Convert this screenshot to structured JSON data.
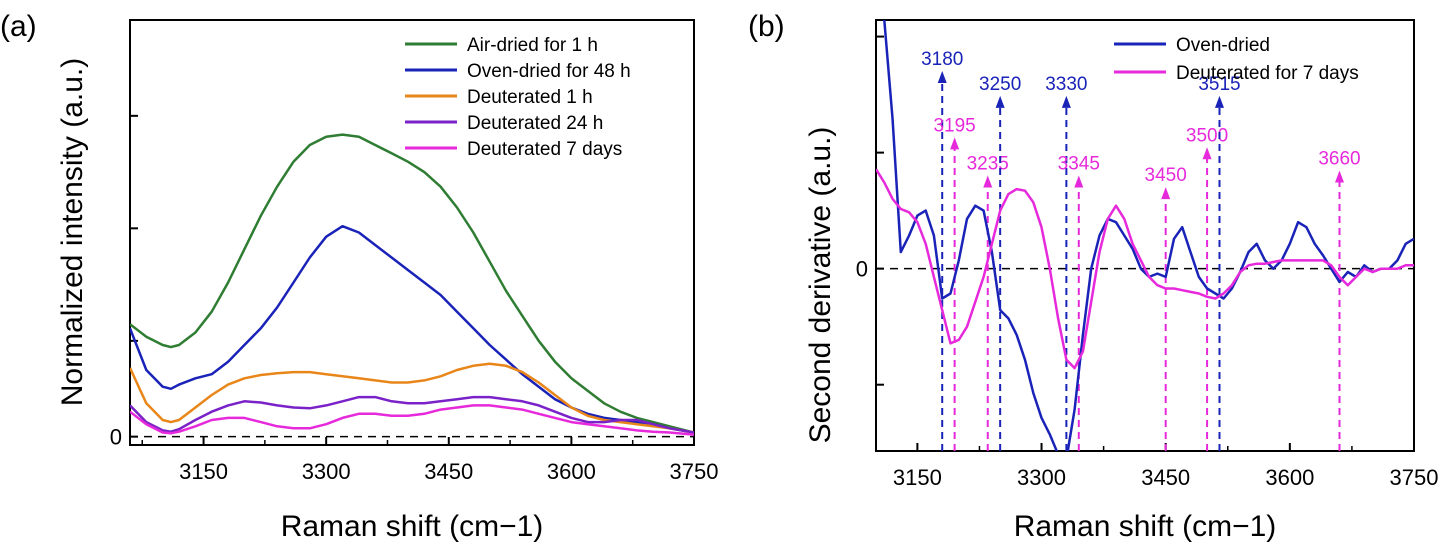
{
  "chart_data": [
    {
      "type": "line",
      "panel_label": "(a)",
      "xlabel": "Raman shift (cm−1)",
      "ylabel": "Normalized intensity (a.u.)",
      "xlim": [
        3060,
        3750
      ],
      "ylim": [
        -0.02,
        1.0
      ],
      "xticks": [
        3150,
        3300,
        3450,
        3600,
        3750
      ],
      "yticks": [
        0
      ],
      "minor_yticks": [
        0.23,
        0.5,
        0.77
      ],
      "zero_line": true,
      "legend_position": "top-right",
      "series": [
        {
          "name": "Air-dried for 1 h",
          "color": "#2e7d32",
          "x": [
            3060,
            3080,
            3100,
            3110,
            3120,
            3140,
            3160,
            3180,
            3200,
            3220,
            3240,
            3260,
            3280,
            3300,
            3320,
            3340,
            3360,
            3380,
            3400,
            3420,
            3440,
            3460,
            3480,
            3500,
            3520,
            3540,
            3560,
            3580,
            3600,
            3620,
            3640,
            3660,
            3680,
            3700,
            3720,
            3750
          ],
          "y": [
            0.27,
            0.24,
            0.22,
            0.215,
            0.22,
            0.25,
            0.3,
            0.37,
            0.45,
            0.53,
            0.6,
            0.66,
            0.7,
            0.72,
            0.725,
            0.72,
            0.7,
            0.68,
            0.66,
            0.635,
            0.6,
            0.55,
            0.49,
            0.42,
            0.35,
            0.29,
            0.23,
            0.18,
            0.14,
            0.11,
            0.08,
            0.06,
            0.045,
            0.035,
            0.025,
            0.01
          ]
        },
        {
          "name": "Oven-dried for 48 h",
          "color": "#1a23b8",
          "x": [
            3060,
            3080,
            3100,
            3110,
            3120,
            3140,
            3160,
            3180,
            3200,
            3220,
            3240,
            3260,
            3280,
            3300,
            3320,
            3340,
            3360,
            3380,
            3400,
            3420,
            3440,
            3460,
            3480,
            3500,
            3520,
            3540,
            3560,
            3580,
            3600,
            3620,
            3640,
            3660,
            3680,
            3700,
            3720,
            3750
          ],
          "y": [
            0.26,
            0.16,
            0.12,
            0.115,
            0.125,
            0.14,
            0.15,
            0.18,
            0.22,
            0.26,
            0.31,
            0.37,
            0.43,
            0.48,
            0.505,
            0.49,
            0.46,
            0.43,
            0.4,
            0.37,
            0.34,
            0.3,
            0.26,
            0.22,
            0.185,
            0.15,
            0.12,
            0.09,
            0.07,
            0.055,
            0.045,
            0.04,
            0.035,
            0.03,
            0.02,
            0.01
          ]
        },
        {
          "name": "Deuterated 1 h",
          "color": "#e8861a",
          "x": [
            3060,
            3080,
            3100,
            3110,
            3120,
            3140,
            3160,
            3180,
            3200,
            3220,
            3240,
            3260,
            3280,
            3300,
            3320,
            3340,
            3360,
            3380,
            3400,
            3420,
            3440,
            3460,
            3480,
            3500,
            3520,
            3540,
            3560,
            3580,
            3600,
            3620,
            3640,
            3660,
            3680,
            3700,
            3720,
            3750
          ],
          "y": [
            0.165,
            0.08,
            0.04,
            0.035,
            0.04,
            0.07,
            0.1,
            0.125,
            0.14,
            0.148,
            0.152,
            0.155,
            0.155,
            0.15,
            0.145,
            0.14,
            0.135,
            0.13,
            0.13,
            0.135,
            0.145,
            0.16,
            0.17,
            0.175,
            0.17,
            0.155,
            0.13,
            0.1,
            0.07,
            0.05,
            0.04,
            0.035,
            0.03,
            0.025,
            0.02,
            0.01
          ]
        },
        {
          "name": "Deuterated 24 h",
          "color": "#7a22c8",
          "x": [
            3060,
            3080,
            3100,
            3110,
            3120,
            3140,
            3160,
            3180,
            3200,
            3220,
            3240,
            3260,
            3280,
            3300,
            3320,
            3340,
            3360,
            3380,
            3400,
            3420,
            3440,
            3460,
            3480,
            3500,
            3520,
            3540,
            3560,
            3580,
            3600,
            3620,
            3640,
            3660,
            3680,
            3700,
            3720,
            3750
          ],
          "y": [
            0.075,
            0.035,
            0.015,
            0.012,
            0.018,
            0.04,
            0.06,
            0.075,
            0.085,
            0.082,
            0.075,
            0.07,
            0.068,
            0.075,
            0.085,
            0.095,
            0.095,
            0.085,
            0.08,
            0.08,
            0.085,
            0.09,
            0.095,
            0.095,
            0.09,
            0.085,
            0.075,
            0.06,
            0.045,
            0.035,
            0.035,
            0.04,
            0.04,
            0.03,
            0.02,
            0.01
          ]
        },
        {
          "name": "Deuterated 7 days",
          "color": "#e62adb",
          "x": [
            3060,
            3080,
            3100,
            3110,
            3120,
            3140,
            3160,
            3180,
            3200,
            3220,
            3240,
            3260,
            3280,
            3300,
            3320,
            3340,
            3360,
            3380,
            3400,
            3420,
            3440,
            3460,
            3480,
            3500,
            3520,
            3540,
            3560,
            3580,
            3600,
            3620,
            3640,
            3660,
            3680,
            3700,
            3720,
            3750
          ],
          "y": [
            0.06,
            0.03,
            0.01,
            0.008,
            0.012,
            0.025,
            0.04,
            0.045,
            0.045,
            0.035,
            0.025,
            0.02,
            0.02,
            0.03,
            0.045,
            0.055,
            0.055,
            0.05,
            0.05,
            0.055,
            0.065,
            0.07,
            0.075,
            0.075,
            0.07,
            0.065,
            0.055,
            0.045,
            0.035,
            0.03,
            0.025,
            0.02,
            0.015,
            0.012,
            0.01,
            0.005
          ]
        }
      ]
    },
    {
      "type": "line",
      "panel_label": "(b)",
      "xlabel": "Raman shift (cm−1)",
      "ylabel": "Second derivative (a.u.)",
      "xlim": [
        3100,
        3750
      ],
      "ylim": [
        -1.1,
        1.5
      ],
      "xticks": [
        3150,
        3300,
        3450,
        3600,
        3750
      ],
      "yticks": [
        0
      ],
      "minor_yticks": [
        -0.7,
        0.7,
        1.4
      ],
      "zero_line": true,
      "legend_position": "top-right",
      "series": [
        {
          "name": "Oven-dried",
          "color": "#1a23b8",
          "x": [
            3100,
            3110,
            3120,
            3130,
            3140,
            3150,
            3160,
            3170,
            3180,
            3190,
            3200,
            3210,
            3220,
            3230,
            3240,
            3250,
            3260,
            3270,
            3280,
            3290,
            3300,
            3310,
            3320,
            3330,
            3340,
            3350,
            3360,
            3370,
            3380,
            3390,
            3400,
            3410,
            3420,
            3430,
            3440,
            3450,
            3460,
            3470,
            3480,
            3490,
            3500,
            3510,
            3520,
            3530,
            3540,
            3550,
            3560,
            3570,
            3580,
            3590,
            3600,
            3610,
            3620,
            3630,
            3640,
            3650,
            3660,
            3670,
            3680,
            3690,
            3700,
            3710,
            3720,
            3730,
            3740,
            3750
          ],
          "y": [
            1.7,
            1.5,
            0.9,
            0.1,
            0.2,
            0.32,
            0.35,
            0.2,
            -0.18,
            -0.15,
            0.05,
            0.3,
            0.38,
            0.35,
            0.1,
            -0.25,
            -0.3,
            -0.4,
            -0.55,
            -0.75,
            -0.9,
            -1.0,
            -1.12,
            -1.15,
            -0.85,
            -0.4,
            0.0,
            0.2,
            0.3,
            0.28,
            0.2,
            0.12,
            0.0,
            -0.05,
            -0.03,
            -0.05,
            0.18,
            0.25,
            0.1,
            -0.05,
            -0.12,
            -0.15,
            -0.18,
            -0.12,
            -0.02,
            0.1,
            0.15,
            0.05,
            0.0,
            0.05,
            0.15,
            0.28,
            0.25,
            0.15,
            0.08,
            0.0,
            -0.08,
            -0.02,
            -0.05,
            0.02,
            -0.02,
            0.0,
            0.0,
            0.05,
            0.15,
            0.18
          ]
        },
        {
          "name": "Deuterated for 7 days",
          "color": "#e62adb",
          "x": [
            3100,
            3110,
            3120,
            3130,
            3140,
            3150,
            3160,
            3170,
            3180,
            3190,
            3200,
            3210,
            3220,
            3230,
            3240,
            3250,
            3260,
            3270,
            3280,
            3290,
            3300,
            3310,
            3320,
            3330,
            3340,
            3350,
            3360,
            3370,
            3380,
            3390,
            3400,
            3410,
            3420,
            3430,
            3440,
            3450,
            3460,
            3470,
            3480,
            3490,
            3500,
            3510,
            3520,
            3530,
            3540,
            3550,
            3560,
            3570,
            3580,
            3590,
            3600,
            3610,
            3620,
            3630,
            3640,
            3650,
            3660,
            3670,
            3680,
            3690,
            3700,
            3710,
            3720,
            3730,
            3740,
            3750
          ],
          "y": [
            0.6,
            0.52,
            0.42,
            0.36,
            0.34,
            0.28,
            0.15,
            -0.05,
            -0.25,
            -0.45,
            -0.43,
            -0.35,
            -0.2,
            -0.05,
            0.15,
            0.35,
            0.45,
            0.48,
            0.47,
            0.4,
            0.25,
            0.0,
            -0.3,
            -0.55,
            -0.6,
            -0.5,
            -0.2,
            0.1,
            0.3,
            0.38,
            0.3,
            0.15,
            0.05,
            -0.05,
            -0.1,
            -0.12,
            -0.12,
            -0.13,
            -0.14,
            -0.15,
            -0.17,
            -0.18,
            -0.15,
            -0.1,
            -0.02,
            0.02,
            0.03,
            0.03,
            0.04,
            0.05,
            0.05,
            0.05,
            0.05,
            0.05,
            0.05,
            0.02,
            -0.05,
            -0.1,
            -0.05,
            0.0,
            -0.02,
            0.0,
            0.0,
            0.0,
            0.02,
            0.02
          ]
        }
      ],
      "annotations": [
        {
          "label": "3180",
          "x": 3180,
          "y": 1.18,
          "color": "#1a23b8"
        },
        {
          "label": "3195",
          "x": 3195,
          "y": 0.78,
          "color": "#e62adb"
        },
        {
          "label": "3235",
          "x": 3235,
          "y": 0.55,
          "color": "#e62adb"
        },
        {
          "label": "3250",
          "x": 3250,
          "y": 1.03,
          "color": "#1a23b8"
        },
        {
          "label": "3330",
          "x": 3330,
          "y": 1.03,
          "color": "#1a23b8"
        },
        {
          "label": "3345",
          "x": 3345,
          "y": 0.55,
          "color": "#e62adb"
        },
        {
          "label": "3450",
          "x": 3450,
          "y": 0.48,
          "color": "#e62adb"
        },
        {
          "label": "3500",
          "x": 3500,
          "y": 0.72,
          "color": "#e62adb"
        },
        {
          "label": "3515",
          "x": 3515,
          "y": 1.03,
          "color": "#1a23b8"
        },
        {
          "label": "3660",
          "x": 3660,
          "y": 0.58,
          "color": "#e62adb"
        }
      ]
    }
  ]
}
